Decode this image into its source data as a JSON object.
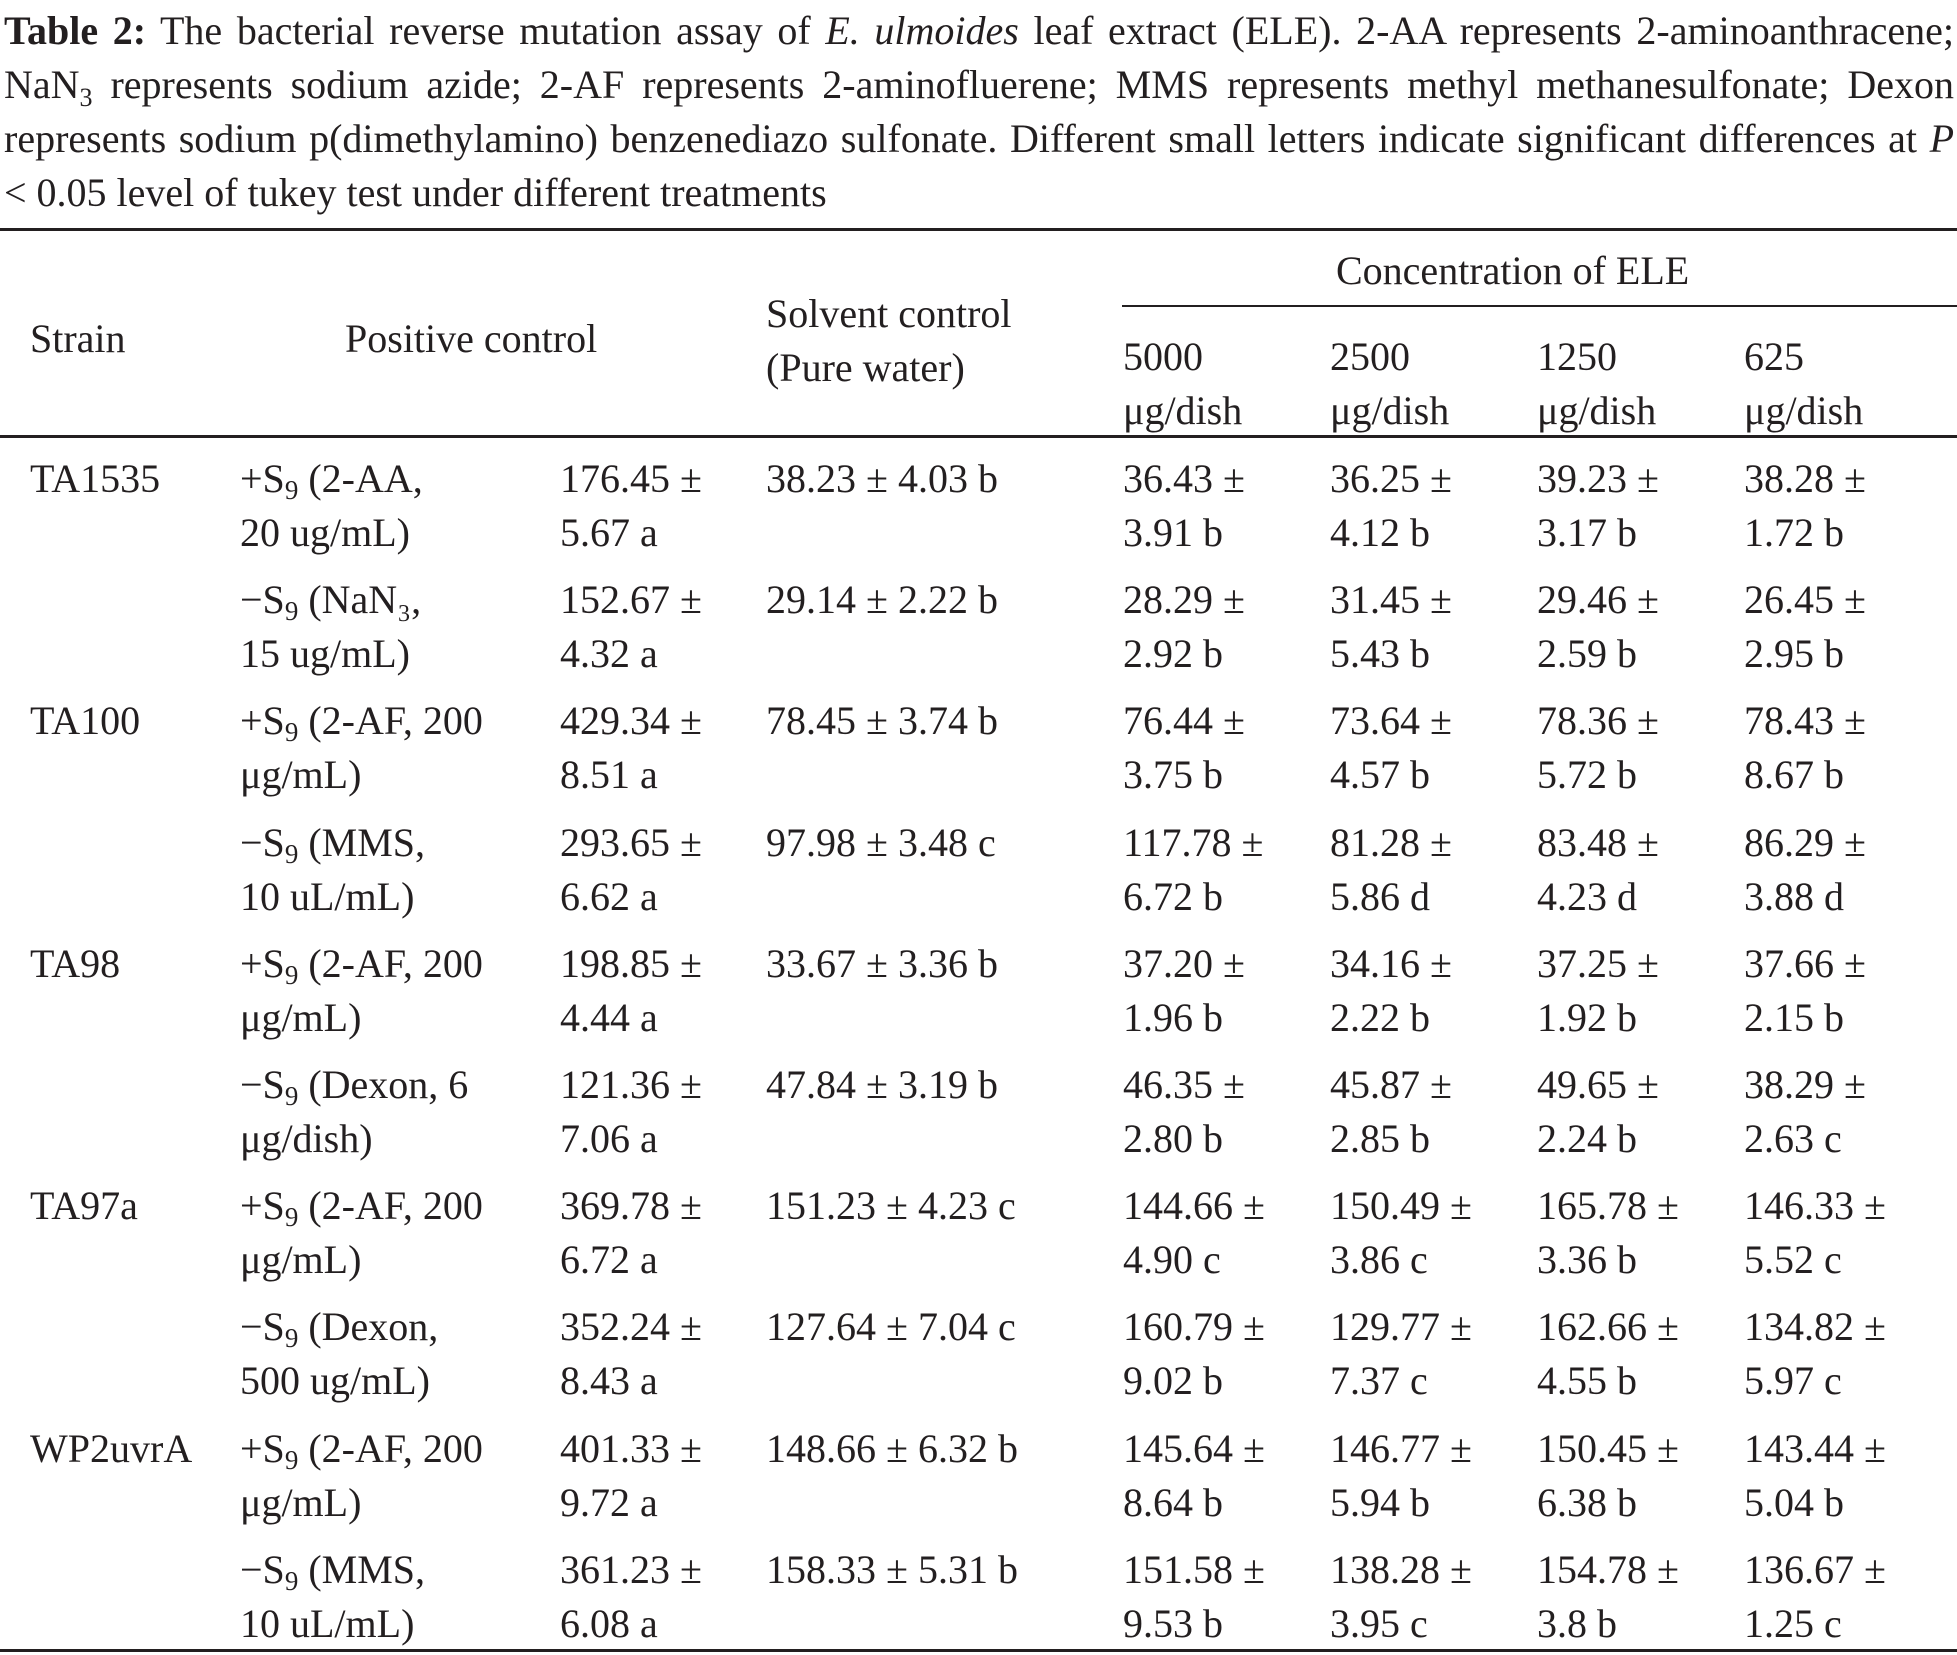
{
  "caption": {
    "label": "Table 2:",
    "seg1": "The bacterial reverse mutation assay of ",
    "species": "E. ulmoides",
    "seg2": " leaf extract (ELE). 2-AA represents 2-aminoanthracene; NaN",
    "sub3": "3",
    "seg3": " represents sodium azide; 2-AF represents 2-aminofluerene; MMS represents methyl methanesulfonate; Dexon represents sodium p(dimethylamino) benzenediazo sulfonate. Different small letters indicate significant differences at ",
    "pvar": "P",
    "seg4": " < 0.05 level of tukey test under different treatments"
  },
  "header": {
    "strain": "Strain",
    "positive": "Positive control",
    "solvent_line1": "Solvent control",
    "solvent_line2": "(Pure water)",
    "concentration": "Concentration of ELE",
    "conc_values": [
      "5000",
      "2500",
      "1250",
      "625"
    ],
    "conc_unit": "μg/dish"
  },
  "rows": [
    {
      "strain": "TA1535",
      "sign": "+S",
      "sub": "9",
      "treat_a": " (2-AA,",
      "treat_b": "20 ug/mL)",
      "pos_a": "176.45 ±",
      "pos_b": "5.67 a",
      "solvent": "38.23 ± 4.03 b",
      "c1a": "36.43 ±",
      "c1b": "3.91 b",
      "c2a": "36.25 ±",
      "c2b": "4.12 b",
      "c3a": "39.23 ±",
      "c3b": "3.17 b",
      "c4a": "38.28 ±",
      "c4b": "1.72 b"
    },
    {
      "strain": "",
      "sign": "−S",
      "sub": "9",
      "treat_a": " (NaN₃,",
      "treat_b": "15 ug/mL)",
      "pos_a": "152.67 ±",
      "pos_b": "4.32 a",
      "solvent": "29.14 ± 2.22 b",
      "c1a": "28.29 ±",
      "c1b": "2.92 b",
      "c2a": "31.45 ±",
      "c2b": "5.43 b",
      "c3a": "29.46 ±",
      "c3b": "2.59 b",
      "c4a": "26.45 ±",
      "c4b": "2.95 b"
    },
    {
      "strain": "TA100",
      "sign": "+S",
      "sub": "9",
      "treat_a": " (2-AF, 200",
      "treat_b": "μg/mL)",
      "pos_a": "429.34 ±",
      "pos_b": "8.51 a",
      "solvent": "78.45 ± 3.74 b",
      "c1a": "76.44 ±",
      "c1b": "3.75 b",
      "c2a": "73.64 ±",
      "c2b": "4.57 b",
      "c3a": "78.36 ±",
      "c3b": "5.72 b",
      "c4a": "78.43 ±",
      "c4b": "8.67 b"
    },
    {
      "strain": "",
      "sign": "−S",
      "sub": "9",
      "treat_a": " (MMS,",
      "treat_b": "10 uL/mL)",
      "pos_a": "293.65 ±",
      "pos_b": "6.62 a",
      "solvent": "97.98 ± 3.48 c",
      "c1a": "117.78 ±",
      "c1b": "6.72 b",
      "c2a": "81.28 ±",
      "c2b": "5.86 d",
      "c3a": "83.48 ±",
      "c3b": "4.23 d",
      "c4a": "86.29 ±",
      "c4b": "3.88 d"
    },
    {
      "strain": "TA98",
      "sign": "+S",
      "sub": "9",
      "treat_a": " (2-AF, 200",
      "treat_b": "μg/mL)",
      "pos_a": "198.85 ±",
      "pos_b": "4.44 a",
      "solvent": "33.67 ± 3.36 b",
      "c1a": "37.20 ±",
      "c1b": "1.96 b",
      "c2a": "34.16 ±",
      "c2b": "2.22 b",
      "c3a": "37.25 ±",
      "c3b": "1.92 b",
      "c4a": "37.66 ±",
      "c4b": "2.15 b"
    },
    {
      "strain": "",
      "sign": "−S",
      "sub": "9",
      "treat_a": " (Dexon, 6",
      "treat_b": "μg/dish)",
      "pos_a": "121.36 ±",
      "pos_b": "7.06 a",
      "solvent": "47.84 ± 3.19 b",
      "c1a": "46.35 ±",
      "c1b": "2.80 b",
      "c2a": "45.87 ±",
      "c2b": "2.85 b",
      "c3a": "49.65 ±",
      "c3b": "2.24 b",
      "c4a": "38.29 ±",
      "c4b": "2.63 c"
    },
    {
      "strain": "TA97a",
      "sign": "+S",
      "sub": "9",
      "treat_a": " (2-AF, 200",
      "treat_b": "μg/mL)",
      "pos_a": "369.78 ±",
      "pos_b": "6.72 a",
      "solvent": "151.23 ± 4.23 c",
      "c1a": "144.66 ±",
      "c1b": "4.90 c",
      "c2a": "150.49 ±",
      "c2b": "3.86 c",
      "c3a": "165.78 ±",
      "c3b": "3.36 b",
      "c4a": "146.33 ±",
      "c4b": "5.52 c"
    },
    {
      "strain": "",
      "sign": "−S",
      "sub": "9",
      "treat_a": " (Dexon,",
      "treat_b": "500 ug/mL)",
      "pos_a": "352.24 ±",
      "pos_b": "8.43 a",
      "solvent": "127.64 ± 7.04 c",
      "c1a": "160.79 ±",
      "c1b": "9.02 b",
      "c2a": "129.77 ±",
      "c2b": "7.37 c",
      "c3a": "162.66 ±",
      "c3b": "4.55 b",
      "c4a": "134.82 ±",
      "c4b": "5.97 c"
    },
    {
      "strain": "WP2uvrA",
      "sign": "+S",
      "sub": "9",
      "treat_a": " (2-AF, 200",
      "treat_b": "μg/mL)",
      "pos_a": "401.33 ±",
      "pos_b": "9.72 a",
      "solvent": "148.66 ± 6.32 b",
      "c1a": "145.64 ±",
      "c1b": "8.64 b",
      "c2a": "146.77 ±",
      "c2b": "5.94 b",
      "c3a": "150.45 ±",
      "c3b": "6.38 b",
      "c4a": "143.44 ±",
      "c4b": "5.04 b"
    },
    {
      "strain": "",
      "sign": "−S",
      "sub": "9",
      "treat_a": " (MMS,",
      "treat_b": "10 uL/mL)",
      "pos_a": "361.23 ±",
      "pos_b": "6.08 a",
      "solvent": "158.33 ± 5.31 b",
      "c1a": "151.58 ±",
      "c1b": "9.53 b",
      "c2a": "138.28 ±",
      "c2b": "3.95 c",
      "c3a": "154.78 ±",
      "c3b": "3.8 b",
      "c4a": "136.67 ±",
      "c4b": "1.25 c"
    }
  ]
}
